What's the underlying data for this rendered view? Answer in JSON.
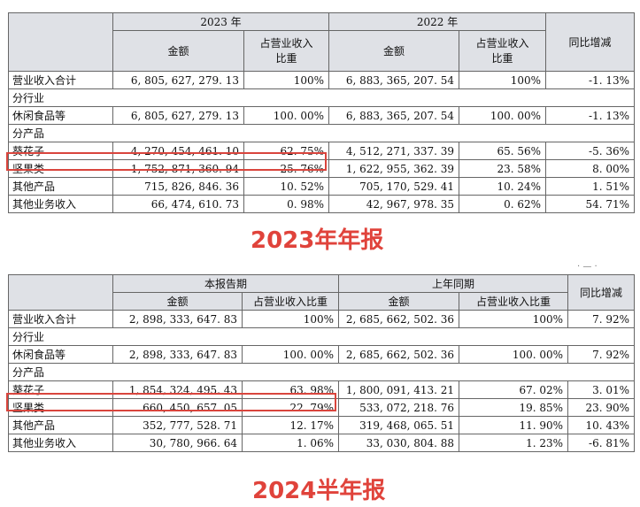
{
  "report_2023": {
    "caption": "2023年年报",
    "header": {
      "year_current": "2023 年",
      "year_prior": "2022 年",
      "amount": "金额",
      "share": "占营业收入\n比重",
      "yoy": "同比增减"
    },
    "total_row": {
      "label": "营业收入合计",
      "cur_amt": "6, 805, 627, 279. 13",
      "cur_pct": "100%",
      "pri_amt": "6, 883, 365, 207. 54",
      "pri_pct": "100%",
      "yoy": "-1. 13%"
    },
    "section_industry": "分行业",
    "industry_row": {
      "label": "休闲食品等",
      "cur_amt": "6, 805, 627, 279. 13",
      "cur_pct": "100. 00%",
      "pri_amt": "6, 883, 365, 207. 54",
      "pri_pct": "100. 00%",
      "yoy": "-1. 13%"
    },
    "section_product": "分产品",
    "product_rows": [
      {
        "label": "葵花子",
        "cur_amt": "4, 270, 454, 461. 10",
        "cur_pct": "62. 75%",
        "pri_amt": "4, 512, 271, 337. 39",
        "pri_pct": "65. 56%",
        "yoy": "-5. 36%"
      },
      {
        "label": "坚果类",
        "cur_amt": "1, 752, 871, 360. 94",
        "cur_pct": "25. 76%",
        "pri_amt": "1, 622, 955, 362. 39",
        "pri_pct": "23. 58%",
        "yoy": "8. 00%"
      },
      {
        "label": "其他产品",
        "cur_amt": "715, 826, 846. 36",
        "cur_pct": "10. 52%",
        "pri_amt": "705, 170, 529. 41",
        "pri_pct": "10. 24%",
        "yoy": "1. 51%"
      },
      {
        "label": "其他业务收入",
        "cur_amt": "66, 474, 610. 73",
        "cur_pct": "0. 98%",
        "pri_amt": "42, 967, 978. 35",
        "pri_pct": "0. 62%",
        "yoy": "54. 71%"
      }
    ]
  },
  "report_2024h1": {
    "caption": "2024半年报",
    "header": {
      "period_current": "本报告期",
      "period_prior": "上年同期",
      "amount": "金额",
      "share": "占营业收入比重",
      "yoy": "同比增减"
    },
    "total_row": {
      "label": "营业收入合计",
      "cur_amt": "2, 898, 333, 647. 83",
      "cur_pct": "100%",
      "pri_amt": "2, 685, 662, 502. 36",
      "pri_pct": "100%",
      "yoy": "7. 92%"
    },
    "section_industry": "分行业",
    "industry_row": {
      "label": "休闲食品等",
      "cur_amt": "2, 898, 333, 647. 83",
      "cur_pct": "100. 00%",
      "pri_amt": "2, 685, 662, 502. 36",
      "pri_pct": "100. 00%",
      "yoy": "7. 92%"
    },
    "section_product": "分产品",
    "product_rows": [
      {
        "label": "葵花子",
        "cur_amt": "1, 854, 324, 495. 43",
        "cur_pct": "63. 98%",
        "pri_amt": "1, 800, 091, 413. 21",
        "pri_pct": "67. 02%",
        "yoy": "3. 01%"
      },
      {
        "label": "坚果类",
        "cur_amt": "660, 450, 657. 05",
        "cur_pct": "22. 79%",
        "pri_amt": "533, 072, 218. 76",
        "pri_pct": "19. 85%",
        "yoy": "23. 90%"
      },
      {
        "label": "其他产品",
        "cur_amt": "352, 777, 528. 71",
        "cur_pct": "12. 17%",
        "pri_amt": "319, 468, 065. 51",
        "pri_pct": "11. 90%",
        "yoy": "10. 43%"
      },
      {
        "label": "其他业务收入",
        "cur_amt": "30, 780, 966. 64",
        "cur_pct": "1. 06%",
        "pri_amt": "33, 030, 804. 88",
        "pri_pct": "1. 23%",
        "yoy": "-6. 81%"
      }
    ]
  },
  "colors": {
    "caption": "#e0433b",
    "highlight": "#d9453d",
    "header_bg": "#dfe1e6"
  }
}
